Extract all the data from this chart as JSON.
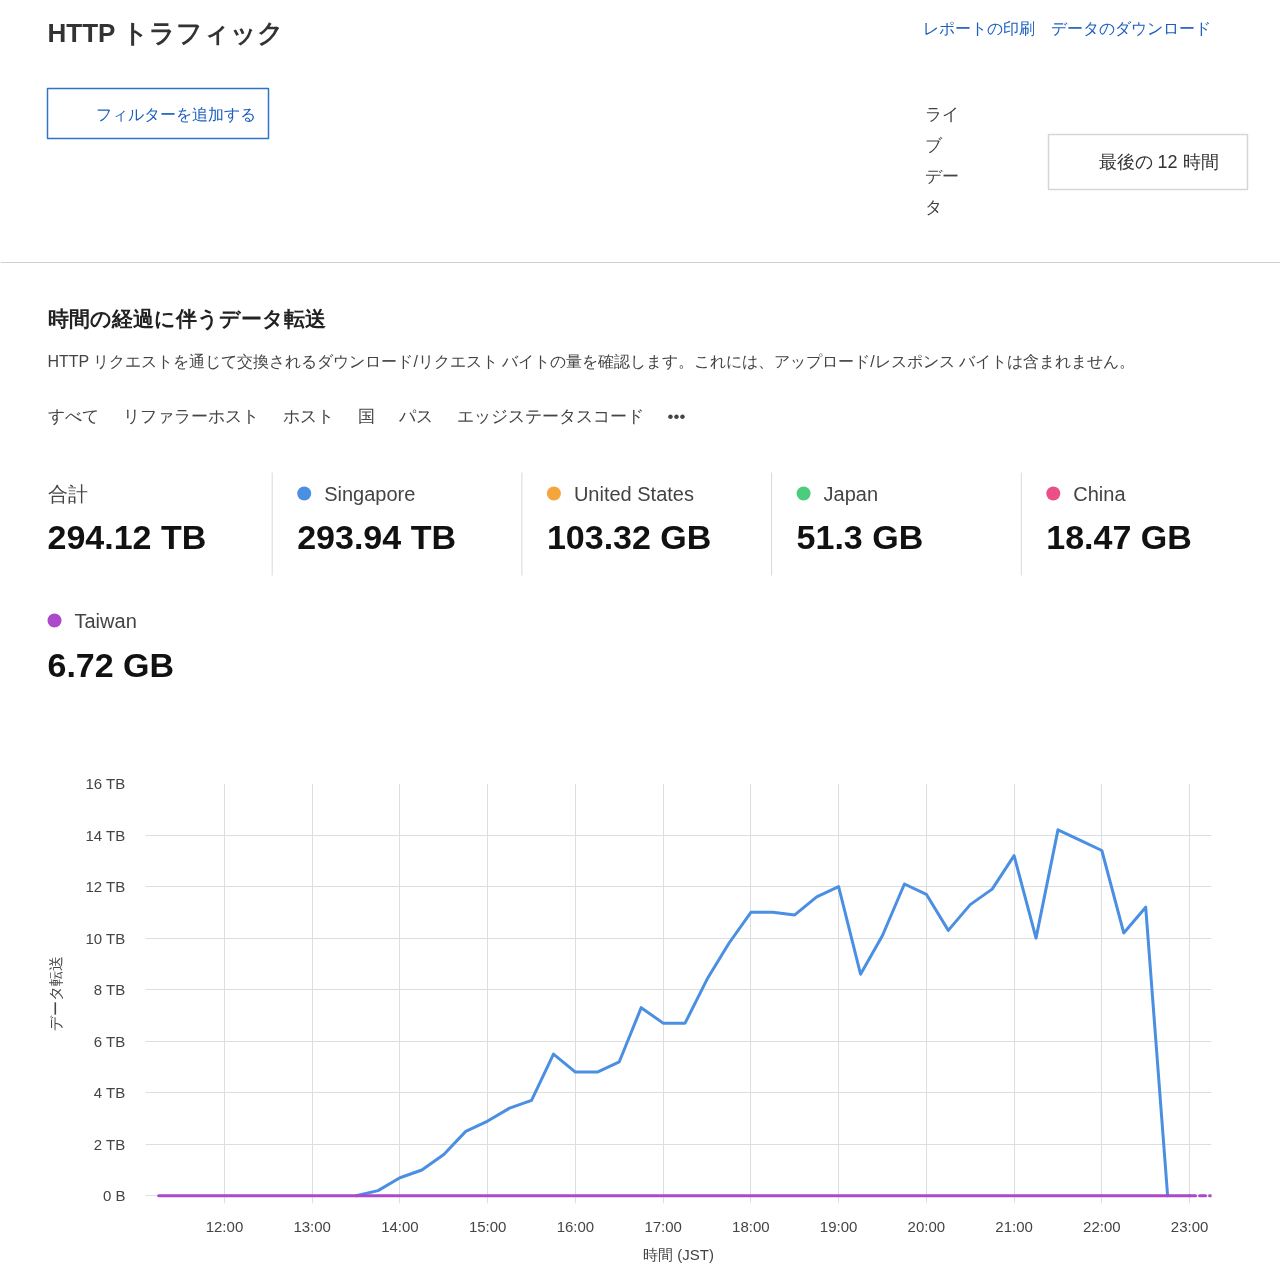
{
  "chart_data": [
    {
      "type": "other",
      "title": "HTTP トラフィック",
      "annotations": [
        "レポートの印刷",
        "データのダウンロード",
        "フィルターを追加する",
        "ライブデータ",
        "最後の 12 時間",
        "すべて",
        "リファラーホスト",
        "ホスト",
        "国",
        "パス",
        "エッジステータスコード",
        "•••"
      ]
    },
    {
      "type": "line",
      "title": "時間の経過に伴うデータ転送",
      "subtitle": "HTTP リクエストを通じて交換されるダウンロード/リクエスト バイトの量を確認します。これには、アップロード/レスポンス バイトは含まれません。",
      "xlabel": "時間 (JST)",
      "ylabel": "データ転送",
      "x": [
        11.25,
        11.5,
        11.75,
        12.0,
        12.25,
        12.5,
        12.75,
        13.0,
        13.25,
        13.5,
        13.75,
        14.0,
        14.25,
        14.5,
        14.75,
        15.0,
        15.25,
        15.5,
        15.75,
        16.0,
        16.25,
        16.5,
        16.75,
        17.0,
        17.25,
        17.5,
        17.75,
        18.0,
        18.25,
        18.5,
        18.75,
        19.0,
        19.25,
        19.5,
        19.75,
        20.0,
        20.25,
        20.5,
        20.75,
        21.0,
        21.25,
        21.5,
        21.75,
        22.0,
        22.25,
        22.5,
        22.75,
        23.0
      ],
      "xlim": [
        11.1,
        23.25
      ],
      "xticks": [
        {
          "value": 12,
          "label": "12:00"
        },
        {
          "value": 13,
          "label": "13:00"
        },
        {
          "value": 14,
          "label": "14:00"
        },
        {
          "value": 15,
          "label": "15:00"
        },
        {
          "value": 16,
          "label": "16:00"
        },
        {
          "value": 17,
          "label": "17:00"
        },
        {
          "value": 18,
          "label": "18:00"
        },
        {
          "value": 19,
          "label": "19:00"
        },
        {
          "value": 20,
          "label": "20:00"
        },
        {
          "value": 21,
          "label": "21:00"
        },
        {
          "value": 22,
          "label": "22:00"
        },
        {
          "value": 23,
          "label": "23:00"
        }
      ],
      "ylim": [
        -0.3,
        16
      ],
      "yticks": [
        {
          "value": 0,
          "label": "0 B"
        },
        {
          "value": 2,
          "label": "2 TB"
        },
        {
          "value": 4,
          "label": "4 TB"
        },
        {
          "value": 6,
          "label": "6 TB"
        },
        {
          "value": 8,
          "label": "8 TB"
        },
        {
          "value": 10,
          "label": "10 TB"
        },
        {
          "value": 12,
          "label": "12 TB"
        },
        {
          "value": 14,
          "label": "14 TB"
        },
        {
          "value": 16,
          "label": "16 TB"
        }
      ],
      "grid": true,
      "legend": "top",
      "series": [
        {
          "name": "Singapore",
          "color": "#4a8fe2",
          "values": [
            null,
            null,
            null,
            null,
            null,
            null,
            null,
            null,
            null,
            0,
            0.2,
            0.7,
            1.0,
            1.6,
            2.5,
            2.9,
            3.4,
            3.7,
            5.5,
            4.8,
            4.8,
            5.2,
            7.3,
            6.7,
            6.7,
            8.4,
            9.8,
            11.0,
            11.0,
            10.9,
            11.6,
            12.0,
            8.6,
            10.1,
            12.1,
            11.7,
            10.3,
            11.3,
            11.9,
            13.2,
            10.0,
            14.2,
            13.8,
            13.4,
            10.2,
            11.2,
            0,
            null
          ]
        },
        {
          "name": "United States",
          "color": "#f5a63b",
          "values": [
            null,
            null,
            null,
            null,
            null,
            null,
            null,
            null,
            null,
            null,
            null,
            null,
            null,
            null,
            null,
            null,
            null,
            null,
            null,
            null,
            null,
            null,
            null,
            null,
            null,
            null,
            null,
            null,
            null,
            null,
            null,
            null,
            null,
            null,
            null,
            null,
            null,
            null,
            null,
            null,
            null,
            null,
            null,
            null,
            null,
            null,
            null,
            null
          ]
        },
        {
          "name": "Japan",
          "color": "#4ccd7c",
          "values": [
            null,
            null,
            null,
            null,
            null,
            null,
            null,
            null,
            null,
            null,
            null,
            null,
            null,
            null,
            null,
            null,
            null,
            null,
            null,
            null,
            null,
            null,
            null,
            null,
            null,
            null,
            null,
            null,
            null,
            null,
            null,
            null,
            null,
            null,
            null,
            null,
            null,
            null,
            null,
            null,
            null,
            null,
            null,
            null,
            null,
            null,
            null,
            null
          ]
        },
        {
          "name": "China",
          "color": "#ec4f87",
          "values": [
            null,
            null,
            null,
            null,
            null,
            null,
            null,
            null,
            null,
            null,
            null,
            null,
            null,
            null,
            null,
            null,
            null,
            null,
            null,
            null,
            null,
            null,
            null,
            null,
            null,
            null,
            null,
            null,
            null,
            null,
            null,
            null,
            null,
            null,
            null,
            null,
            null,
            null,
            null,
            null,
            null,
            null,
            null,
            null,
            null,
            null,
            null,
            null
          ]
        },
        {
          "name": "Taiwan",
          "color": "#ab48cc",
          "values": [
            0,
            0,
            0,
            0,
            0,
            0,
            0,
            0,
            0,
            0,
            0,
            0,
            0,
            0,
            0,
            0,
            0,
            0,
            0,
            0,
            0,
            0,
            0,
            0,
            0,
            0,
            0,
            0,
            0,
            0,
            0,
            0,
            0,
            0,
            0,
            0,
            0,
            0,
            0,
            0,
            0,
            0,
            0,
            0,
            0,
            0,
            0,
            0
          ]
        },
        {
          "color": "#ab48cc",
          "line_style": "dashed",
          "x": [
            23.0,
            23.25
          ],
          "values": [
            0,
            0
          ]
        }
      ],
      "annotations": [
        "合計",
        "294.12 TB",
        "293.94 TB",
        "103.32 GB",
        "51.3 GB",
        "18.47 GB",
        "6.72 GB"
      ]
    }
  ]
}
